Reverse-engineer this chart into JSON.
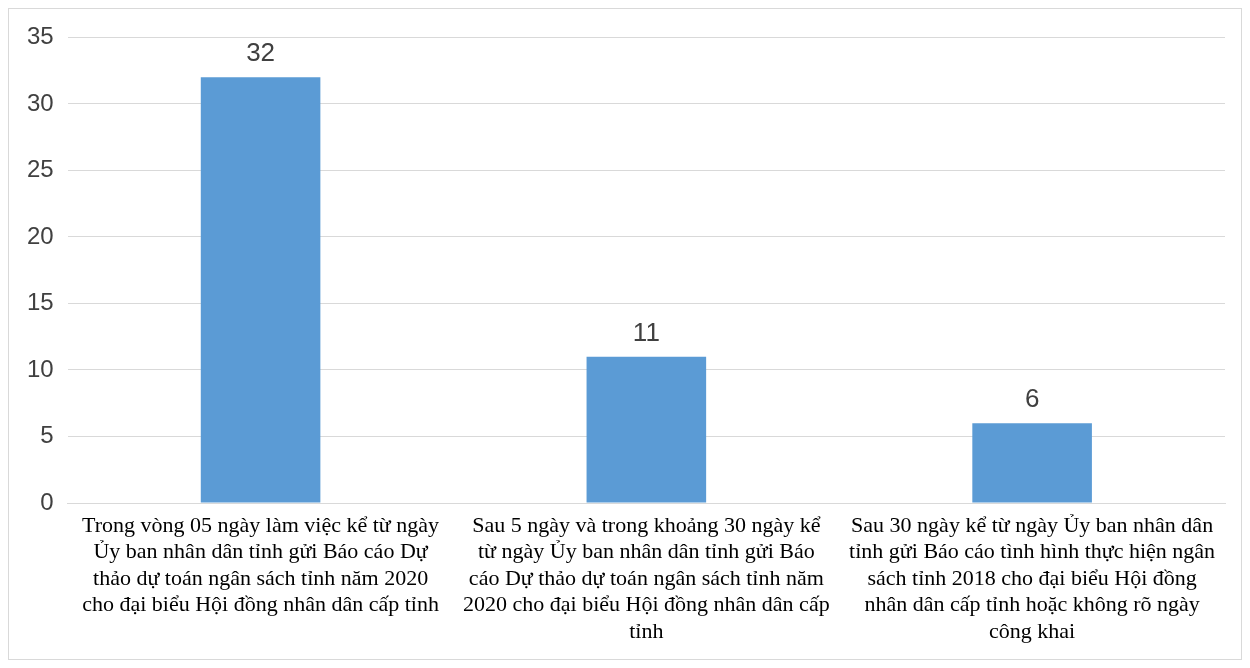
{
  "chart_data": {
    "type": "bar",
    "categories": [
      "Trong vòng 05 ngày làm việc kể từ ngày Ủy ban nhân dân tỉnh gửi Báo cáo Dự thảo dự toán ngân sách tỉnh năm 2020 cho đại biểu Hội đồng nhân dân cấp tỉnh",
      "Sau 5 ngày và trong khoảng 30 ngày kể từ ngày Ủy ban nhân dân tỉnh gửi Báo cáo Dự thảo dự toán ngân sách tỉnh năm 2020 cho đại biểu Hội đồng nhân dân cấp tỉnh",
      "Sau 30 ngày kể từ ngày Ủy ban nhân dân tỉnh gửi Báo cáo tình hình thực hiện ngân sách tỉnh 2018 cho đại biểu Hội đồng nhân dân cấp tỉnh hoặc không rõ ngày công khai"
    ],
    "values": [
      32,
      11,
      6
    ],
    "color": "#5b9bd5",
    "ylim": [
      0,
      35
    ],
    "yticks": [
      0,
      5,
      10,
      15,
      20,
      25,
      30,
      35
    ],
    "grid": "y",
    "data_labels": true,
    "legend": false
  }
}
